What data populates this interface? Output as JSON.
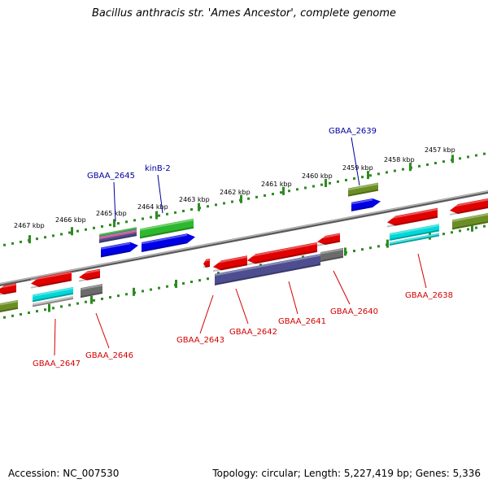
{
  "title": "Bacillus anthracis str. 'Ames Ancestor', complete genome",
  "footer": {
    "accession": "Accession: NC_007530",
    "summary": "Topology: circular; Length: 5,227,419 bp; Genes: 5,336"
  },
  "colors": {
    "backbone": "#888888",
    "ruler": "#2e8b22",
    "label_forward": "#00009c",
    "label_reverse": "#d40000",
    "red": "#e00000",
    "blue": "#0000e6",
    "green": "#2db82d",
    "olive": "#6b8e23",
    "cyan": "#00d8d8",
    "gray": "#6b6b6b",
    "slate": "#4d4d8f"
  },
  "ruler_labels": [
    "2467 kbp",
    "2466 kbp",
    "2465 kbp",
    "2464 kbp",
    "2463 kbp",
    "2462 kbp",
    "2461 kbp",
    "2460 kbp",
    "2459 kbp",
    "2458 kbp",
    "2457 kbp"
  ],
  "gene_labels": [
    {
      "text": "GBAA_2645",
      "strand": "forward"
    },
    {
      "text": "kinB-2",
      "strand": "forward"
    },
    {
      "text": "GBAA_2639",
      "strand": "forward"
    },
    {
      "text": "GBAA_2647",
      "strand": "reverse"
    },
    {
      "text": "GBAA_2646",
      "strand": "reverse"
    },
    {
      "text": "GBAA_2643",
      "strand": "reverse"
    },
    {
      "text": "GBAA_2642",
      "strand": "reverse"
    },
    {
      "text": "GBAA_2641",
      "strand": "reverse"
    },
    {
      "text": "GBAA_2640",
      "strand": "reverse"
    },
    {
      "text": "GBAA_2638",
      "strand": "reverse"
    }
  ]
}
